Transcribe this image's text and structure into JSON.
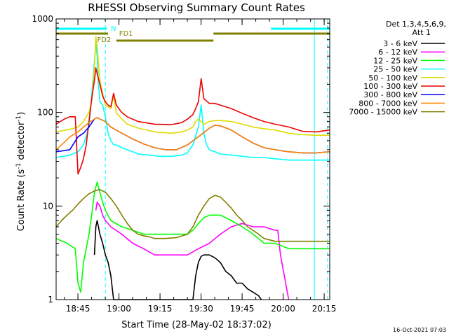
{
  "chart_data": {
    "type": "line",
    "title": "RHESSI Observing Summary Count Rates",
    "xlabel": "Start Time (28-May-02 18:37:02)",
    "ylabel": "Count Rate (s⁻¹ detector⁻¹)",
    "ylabel_main": "Count Rate (s",
    "ylabel_sup1": "-1",
    "ylabel_mid": " detector",
    "ylabel_sup2": "-1",
    "ylabel_end": ")",
    "yscale": "log",
    "ylim": [
      1,
      1000
    ],
    "xlim_minutes": [
      0,
      100
    ],
    "x_unit": "minutes after 18:37:02",
    "x_ticks": [
      {
        "m": 7.97,
        "label": "18:45"
      },
      {
        "m": 22.97,
        "label": "19:00"
      },
      {
        "m": 37.97,
        "label": "19:15"
      },
      {
        "m": 52.97,
        "label": "19:30"
      },
      {
        "m": 67.97,
        "label": "19:45"
      },
      {
        "m": 82.97,
        "label": "20:00"
      },
      {
        "m": 97.97,
        "label": "20:15"
      }
    ],
    "y_ticks": [
      {
        "v": 1,
        "label": "1"
      },
      {
        "v": 10,
        "label": "10"
      },
      {
        "v": 100,
        "label": "100"
      },
      {
        "v": 1000,
        "label": "1000"
      }
    ],
    "legend_header": [
      "Det 1,3,4,5,6,9,",
      "Att 1"
    ],
    "legend_position": "right",
    "series": [
      {
        "name": "3 - 6 keV",
        "color": "#000000",
        "x": [
          14.0,
          14.5,
          15.0,
          16.0,
          17.0,
          18.0,
          19.0,
          20.0,
          21.0,
          50.0,
          51.0,
          52.0,
          53.0,
          54.0,
          56.0,
          58.0,
          60.0,
          62.0,
          64.0,
          66.0,
          68.0,
          70.0,
          72.0,
          74.0,
          75.0
        ],
        "y": [
          3.0,
          6.0,
          7.0,
          5.0,
          4.0,
          3.0,
          2.5,
          1.8,
          1.0,
          1.0,
          1.8,
          2.5,
          2.9,
          3.0,
          3.0,
          2.8,
          2.5,
          2.0,
          1.8,
          1.5,
          1.5,
          1.3,
          1.2,
          1.1,
          1.0
        ]
      },
      {
        "name": "6 - 12 keV",
        "color": "#ff00ff",
        "x": [
          14.5,
          15.0,
          16.0,
          17.0,
          18.0,
          20.0,
          24.0,
          28.0,
          32.0,
          36.0,
          40.0,
          44.0,
          48.0,
          52.0,
          56.0,
          60.0,
          64.0,
          68.0,
          72.0,
          76.0,
          80.0,
          81.0,
          82.0,
          85.0
        ],
        "y": [
          9.0,
          11.0,
          10.0,
          8.0,
          7.0,
          6.0,
          5.0,
          4.0,
          3.5,
          3.0,
          3.0,
          3.0,
          3.0,
          3.5,
          4.0,
          5.0,
          6.0,
          6.5,
          6.0,
          6.0,
          5.5,
          5.5,
          3.0,
          1.0
        ]
      },
      {
        "name": "12 - 25 keV",
        "color": "#00ff00",
        "x": [
          0.0,
          4.0,
          7.0,
          8.0,
          9.0,
          10.0,
          11.0,
          12.0,
          13.0,
          14.0,
          15.0,
          16.0,
          17.0,
          18.0,
          20.0,
          24.0,
          28.0,
          32.0,
          36.0,
          40.0,
          44.0,
          48.0,
          50.0,
          52.0,
          54.0,
          56.0,
          58.0,
          60.0,
          62.0,
          64.0,
          66.0,
          68.0,
          70.0,
          72.0,
          74.0,
          76.0,
          78.0,
          80.0,
          85.0,
          90.0,
          95.0,
          100.0
        ],
        "y": [
          4.5,
          4.0,
          3.5,
          1.5,
          1.2,
          2.5,
          3.5,
          5.0,
          8.0,
          14.0,
          18.0,
          14.0,
          11.0,
          9.0,
          7.0,
          6.0,
          5.5,
          5.0,
          5.0,
          5.0,
          5.0,
          5.0,
          5.5,
          6.5,
          7.5,
          8.0,
          8.0,
          8.0,
          7.5,
          7.0,
          6.5,
          6.0,
          5.5,
          5.0,
          4.5,
          4.0,
          4.0,
          4.0,
          3.5,
          3.5,
          3.5,
          3.5
        ]
      },
      {
        "name": "25 - 50 keV",
        "color": "#00ffff",
        "x": [
          0.0,
          5.0,
          8.0,
          10.0,
          12.0,
          13.0,
          14.0,
          14.5,
          15.0,
          15.5,
          16.0,
          17.0,
          18.0,
          19.0,
          20.0,
          21.0,
          22.0,
          24.0,
          26.0,
          28.0,
          30.0,
          34.0,
          38.0,
          42.0,
          46.0,
          48.0,
          50.0,
          52.0,
          53.0,
          54.0,
          55.0,
          56.0,
          58.0,
          60.0,
          64.0,
          68.0,
          72.0,
          76.0,
          80.0,
          85.0,
          90.0,
          95.0,
          100.0
        ],
        "y": [
          33.0,
          35.0,
          38.0,
          45.0,
          70.0,
          150.0,
          350.0,
          550.0,
          400.0,
          200.0,
          130.0,
          120.0,
          90.0,
          60.0,
          50.0,
          45.0,
          45.0,
          42.0,
          40.0,
          38.0,
          36.0,
          35.0,
          34.0,
          34.0,
          35.0,
          37.0,
          45.0,
          70.0,
          120.0,
          60.0,
          45.0,
          40.0,
          38.0,
          36.0,
          35.0,
          34.0,
          33.0,
          33.0,
          32.0,
          31.0,
          31.0,
          31.0,
          31.0
        ]
      },
      {
        "name": "50 - 100 keV",
        "color": "#dddd00",
        "x": [
          0.0,
          5.0,
          8.0,
          10.0,
          12.0,
          13.0,
          14.0,
          14.5,
          15.0,
          16.0,
          17.0,
          18.0,
          20.0,
          21.0,
          22.0,
          24.0,
          26.0,
          30.0,
          36.0,
          42.0,
          46.0,
          48.0,
          50.0,
          51.0,
          52.0,
          53.0,
          54.0,
          56.0,
          58.0,
          60.0,
          64.0,
          68.0,
          72.0,
          76.0,
          80.0,
          85.0,
          90.0,
          95.0,
          100.0
        ],
        "y": [
          62.0,
          66.0,
          70.0,
          80.0,
          100.0,
          130.0,
          300.0,
          650.0,
          500.0,
          220.0,
          160.0,
          120.0,
          110.0,
          150.0,
          100.0,
          85.0,
          75.0,
          68.0,
          62.0,
          60.0,
          62.0,
          65.0,
          70.0,
          80.0,
          85.0,
          80.0,
          75.0,
          80.0,
          82.0,
          82.0,
          80.0,
          75.0,
          70.0,
          67.0,
          65.0,
          60.0,
          58.0,
          57.0,
          57.0
        ]
      },
      {
        "name": "100 - 300 keV",
        "color": "#ee0000",
        "x": [
          0.0,
          3.0,
          5.0,
          7.0,
          8.0,
          9.0,
          10.0,
          11.0,
          12.0,
          13.0,
          14.0,
          14.5,
          15.0,
          16.0,
          17.0,
          18.0,
          19.0,
          20.0,
          21.0,
          22.0,
          24.0,
          26.0,
          30.0,
          36.0,
          42.0,
          46.0,
          48.0,
          50.0,
          51.0,
          52.0,
          53.0,
          54.0,
          56.0,
          58.0,
          60.0,
          64.0,
          68.0,
          72.0,
          76.0,
          80.0,
          85.0,
          90.0,
          95.0,
          100.0
        ],
        "y": [
          75.0,
          85.0,
          90.0,
          90.0,
          22.0,
          26.0,
          32.0,
          45.0,
          80.0,
          140.0,
          220.0,
          300.0,
          260.0,
          200.0,
          150.0,
          130.0,
          120.0,
          115.0,
          160.0,
          120.0,
          100.0,
          90.0,
          80.0,
          75.0,
          74.0,
          78.0,
          85.0,
          95.0,
          110.0,
          130.0,
          230.0,
          140.0,
          125.0,
          125.0,
          120.0,
          110.0,
          98.0,
          88.0,
          80.0,
          75.0,
          70.0,
          63.0,
          62.0,
          65.0
        ]
      },
      {
        "name": "300 - 800 keV",
        "color": "#0000ff",
        "x": [
          0.0,
          5.0,
          8.0,
          10.0,
          12.0,
          14.0,
          15.0,
          16.0,
          18.0,
          20.0,
          24.0,
          28.0,
          32.0,
          36.0,
          40.0,
          44.0,
          48.0,
          52.0,
          56.0,
          58.0,
          60.0,
          64.0,
          68.0,
          72.0,
          76.0,
          80.0,
          85.0,
          90.0,
          95.0,
          100.0
        ],
        "y": [
          38.0,
          40.0,
          55.0,
          60.0,
          70.0,
          85.0,
          88.0,
          85.0,
          80.0,
          70.0,
          60.0,
          52.0,
          46.0,
          42.0,
          40.0,
          40.0,
          45.0,
          55.0,
          68.0,
          73.0,
          72.0,
          65.0,
          55.0,
          47.0,
          42.0,
          40.0,
          38.0,
          37.0,
          37.0,
          38.0
        ]
      },
      {
        "name": "800 - 7000 keV",
        "color": "#ff8800",
        "x": [
          0.0,
          3.0,
          5.0,
          8.0,
          10.0,
          12.0,
          14.0,
          15.0,
          16.0,
          18.0,
          20.0,
          24.0,
          28.0,
          32.0,
          36.0,
          40.0,
          44.0,
          48.0,
          52.0,
          56.0,
          58.0,
          60.0,
          64.0,
          68.0,
          72.0,
          76.0,
          80.0,
          85.0,
          90.0,
          95.0,
          100.0
        ],
        "y": [
          40.0,
          48.0,
          55.0,
          62.0,
          70.0,
          78.0,
          85.0,
          88.0,
          85.0,
          80.0,
          70.0,
          60.0,
          52.0,
          46.0,
          42.0,
          40.0,
          40.0,
          45.0,
          55.0,
          68.0,
          73.0,
          72.0,
          65.0,
          55.0,
          47.0,
          42.0,
          40.0,
          38.0,
          37.0,
          37.0,
          38.0
        ]
      },
      {
        "name": "7000 - 15000 keV",
        "color": "#808000",
        "x": [
          0.0,
          2.0,
          4.0,
          6.0,
          8.0,
          10.0,
          12.0,
          14.0,
          16.0,
          18.0,
          20.0,
          22.0,
          24.0,
          26.0,
          28.0,
          30.0,
          32.0,
          34.0,
          36.0,
          40.0,
          44.0,
          48.0,
          50.0,
          52.0,
          54.0,
          56.0,
          58.0,
          60.0,
          62.0,
          64.0,
          66.0,
          68.0,
          70.0,
          72.0,
          74.0,
          76.0,
          80.0,
          85.0,
          90.0,
          95.0,
          100.0
        ],
        "y": [
          6.0,
          7.0,
          8.0,
          9.0,
          10.5,
          12.0,
          13.5,
          14.5,
          15.0,
          14.0,
          12.0,
          10.0,
          8.0,
          6.5,
          5.5,
          5.0,
          4.8,
          4.7,
          4.5,
          4.5,
          4.6,
          5.0,
          6.0,
          8.0,
          10.0,
          12.0,
          13.0,
          12.5,
          11.0,
          9.5,
          8.0,
          7.0,
          6.0,
          5.5,
          5.0,
          4.5,
          4.2,
          4.2,
          4.2,
          4.2,
          4.2
        ]
      }
    ],
    "annotations": [
      {
        "label": "N",
        "color": "#00ffff"
      },
      {
        "label": "FD1",
        "color": "#808000"
      },
      {
        "label": "FD2",
        "color": "#808000"
      }
    ],
    "footer": "16-Oct-2021 07:03"
  }
}
